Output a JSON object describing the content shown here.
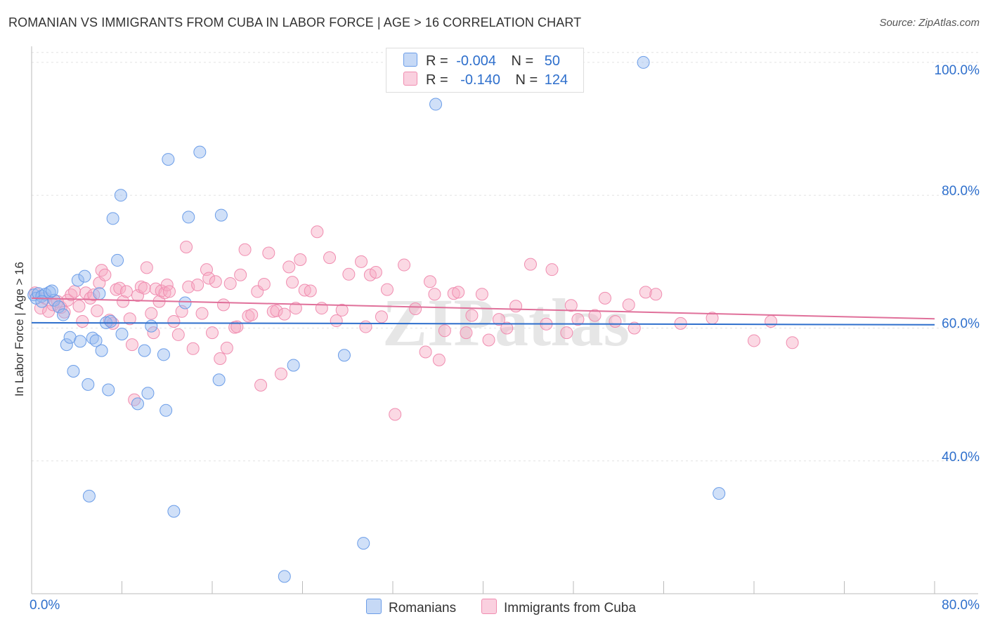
{
  "title": "ROMANIAN VS IMMIGRANTS FROM CUBA IN LABOR FORCE | AGE > 16 CORRELATION CHART",
  "source": "Source: ZipAtlas.com",
  "watermark": "ZIPatlas",
  "legend_top": {
    "row1": {
      "r_label": "R =",
      "r_value": "-0.004",
      "n_label": "N =",
      "n_value": "50"
    },
    "row2": {
      "r_label": "R =",
      "r_value": "-0.140",
      "n_label": "N =",
      "n_value": "124"
    }
  },
  "legend_bottom": {
    "romanians": "Romanians",
    "cuba": "Immigrants from Cuba"
  },
  "chart_data": {
    "type": "scatter",
    "title": "ROMANIAN VS IMMIGRANTS FROM CUBA IN LABOR FORCE | AGE > 16 CORRELATION CHART",
    "xlabel": "",
    "ylabel": "In Labor Force | Age > 16",
    "xlim": [
      0,
      80
    ],
    "ylim": [
      20,
      102
    ],
    "x_tick_labels": [
      "0.0%",
      "80.0%"
    ],
    "y_tick_labels": [
      "40.0%",
      "60.0%",
      "80.0%",
      "100.0%"
    ],
    "y_ticks": [
      40,
      60,
      80,
      100
    ],
    "grid": true,
    "legend_position": "top-center",
    "colors": {
      "romanians": "#6b9de8",
      "cuba": "#f08db0",
      "romanians_line": "#2e6fcc",
      "cuba_line": "#e0709a"
    },
    "series": [
      {
        "name": "Romanians",
        "r": -0.004,
        "n": 50,
        "trend": [
          [
            0,
            60.8
          ],
          [
            80,
            60.5
          ]
        ],
        "points": [
          [
            0.2,
            65.0
          ],
          [
            0.4,
            64.5
          ],
          [
            0.6,
            65.2
          ],
          [
            0.9,
            64.8
          ],
          [
            1.2,
            65.1
          ],
          [
            1.6,
            65.4
          ],
          [
            2.0,
            64.2
          ],
          [
            2.4,
            63.2
          ],
          [
            2.8,
            62.0
          ],
          [
            3.1,
            57.5
          ],
          [
            3.4,
            58.6
          ],
          [
            3.7,
            53.5
          ],
          [
            4.1,
            67.2
          ],
          [
            4.3,
            58.0
          ],
          [
            4.7,
            67.8
          ],
          [
            5.0,
            51.5
          ],
          [
            5.1,
            34.7
          ],
          [
            5.4,
            58.5
          ],
          [
            5.7,
            58.1
          ],
          [
            6.0,
            65.2
          ],
          [
            6.2,
            56.6
          ],
          [
            6.6,
            60.8
          ],
          [
            6.8,
            50.7
          ],
          [
            7.0,
            61.0
          ],
          [
            7.2,
            76.5
          ],
          [
            7.6,
            70.2
          ],
          [
            7.9,
            80.0
          ],
          [
            8.0,
            59.1
          ],
          [
            9.4,
            48.6
          ],
          [
            10.0,
            56.6
          ],
          [
            10.3,
            50.2
          ],
          [
            10.6,
            60.3
          ],
          [
            11.7,
            56.0
          ],
          [
            11.9,
            47.6
          ],
          [
            12.1,
            85.4
          ],
          [
            12.6,
            32.4
          ],
          [
            13.6,
            63.8
          ],
          [
            13.9,
            76.7
          ],
          [
            14.9,
            86.5
          ],
          [
            16.6,
            52.2
          ],
          [
            16.8,
            77.0
          ],
          [
            22.4,
            22.6
          ],
          [
            23.2,
            54.4
          ],
          [
            27.7,
            55.9
          ],
          [
            29.4,
            27.6
          ],
          [
            35.8,
            93.7
          ],
          [
            54.2,
            100.0
          ],
          [
            60.9,
            35.1
          ],
          [
            0.9,
            64.0
          ],
          [
            1.8,
            65.6
          ]
        ]
      },
      {
        "name": "Immigrants from Cuba",
        "r": -0.14,
        "n": 124,
        "trend": [
          [
            0,
            64.5
          ],
          [
            80,
            61.4
          ]
        ],
        "points": [
          [
            0.3,
            65.3
          ],
          [
            0.8,
            63.0
          ],
          [
            1.2,
            64.5
          ],
          [
            1.5,
            62.5
          ],
          [
            1.9,
            63.5
          ],
          [
            2.3,
            64.0
          ],
          [
            2.6,
            63.1
          ],
          [
            2.9,
            62.4
          ],
          [
            3.2,
            64.2
          ],
          [
            3.5,
            65.0
          ],
          [
            3.8,
            65.5
          ],
          [
            4.2,
            63.3
          ],
          [
            4.5,
            61.0
          ],
          [
            4.8,
            65.3
          ],
          [
            5.2,
            64.5
          ],
          [
            5.5,
            65.0
          ],
          [
            5.8,
            62.6
          ],
          [
            6.0,
            66.8
          ],
          [
            6.2,
            68.7
          ],
          [
            6.5,
            68.0
          ],
          [
            6.9,
            61.2
          ],
          [
            7.2,
            60.7
          ],
          [
            7.5,
            65.8
          ],
          [
            7.8,
            66.0
          ],
          [
            8.1,
            64.0
          ],
          [
            8.4,
            65.5
          ],
          [
            8.7,
            61.4
          ],
          [
            8.9,
            57.5
          ],
          [
            9.1,
            49.2
          ],
          [
            9.4,
            64.9
          ],
          [
            9.7,
            66.2
          ],
          [
            10.0,
            66.0
          ],
          [
            10.2,
            69.1
          ],
          [
            10.6,
            62.2
          ],
          [
            10.8,
            59.3
          ],
          [
            11.0,
            65.9
          ],
          [
            11.3,
            64.0
          ],
          [
            11.5,
            65.6
          ],
          [
            11.8,
            65.3
          ],
          [
            12.0,
            66.5
          ],
          [
            12.2,
            65.5
          ],
          [
            12.6,
            61.0
          ],
          [
            13.0,
            59.0
          ],
          [
            13.3,
            62.5
          ],
          [
            13.7,
            72.2
          ],
          [
            13.9,
            66.2
          ],
          [
            14.3,
            56.9
          ],
          [
            14.7,
            66.5
          ],
          [
            15.1,
            62.2
          ],
          [
            15.5,
            68.8
          ],
          [
            15.7,
            67.5
          ],
          [
            16.0,
            59.3
          ],
          [
            16.3,
            67.0
          ],
          [
            16.7,
            55.4
          ],
          [
            17.0,
            63.5
          ],
          [
            17.3,
            57.0
          ],
          [
            17.6,
            66.7
          ],
          [
            18.0,
            60.1
          ],
          [
            18.2,
            60.2
          ],
          [
            18.5,
            68.0
          ],
          [
            18.9,
            71.8
          ],
          [
            19.2,
            61.8
          ],
          [
            19.5,
            62.0
          ],
          [
            20.0,
            65.5
          ],
          [
            20.3,
            51.4
          ],
          [
            20.6,
            66.6
          ],
          [
            21.0,
            71.3
          ],
          [
            21.4,
            62.5
          ],
          [
            21.7,
            62.6
          ],
          [
            22.1,
            53.1
          ],
          [
            22.4,
            62.1
          ],
          [
            22.8,
            69.2
          ],
          [
            23.1,
            66.9
          ],
          [
            23.4,
            63.0
          ],
          [
            23.8,
            70.3
          ],
          [
            24.2,
            65.7
          ],
          [
            24.7,
            65.6
          ],
          [
            25.3,
            74.5
          ],
          [
            25.7,
            63.0
          ],
          [
            26.4,
            70.6
          ],
          [
            27.0,
            61.1
          ],
          [
            27.5,
            62.7
          ],
          [
            28.1,
            68.1
          ],
          [
            29.2,
            70.0
          ],
          [
            29.6,
            60.2
          ],
          [
            30.0,
            68.0
          ],
          [
            30.5,
            68.4
          ],
          [
            31.0,
            61.7
          ],
          [
            31.5,
            65.8
          ],
          [
            32.2,
            47.0
          ],
          [
            33.0,
            69.5
          ],
          [
            34.0,
            62.9
          ],
          [
            34.9,
            56.4
          ],
          [
            35.3,
            67.0
          ],
          [
            35.7,
            65.1
          ],
          [
            36.1,
            55.2
          ],
          [
            36.6,
            59.6
          ],
          [
            37.4,
            65.2
          ],
          [
            37.8,
            65.4
          ],
          [
            38.5,
            59.3
          ],
          [
            39.0,
            61.9
          ],
          [
            39.9,
            65.1
          ],
          [
            40.5,
            58.2
          ],
          [
            41.4,
            61.3
          ],
          [
            42.1,
            60.0
          ],
          [
            42.9,
            63.3
          ],
          [
            44.2,
            69.6
          ],
          [
            45.6,
            60.6
          ],
          [
            46.1,
            68.8
          ],
          [
            47.4,
            59.3
          ],
          [
            47.8,
            63.4
          ],
          [
            48.4,
            61.3
          ],
          [
            49.9,
            61.9
          ],
          [
            50.8,
            64.5
          ],
          [
            51.7,
            61.0
          ],
          [
            52.9,
            63.5
          ],
          [
            53.4,
            60.0
          ],
          [
            54.4,
            65.4
          ],
          [
            55.3,
            65.1
          ],
          [
            57.5,
            60.7
          ],
          [
            60.3,
            61.5
          ],
          [
            64.0,
            58.1
          ],
          [
            65.5,
            61.0
          ],
          [
            67.4,
            57.8
          ]
        ]
      }
    ]
  }
}
